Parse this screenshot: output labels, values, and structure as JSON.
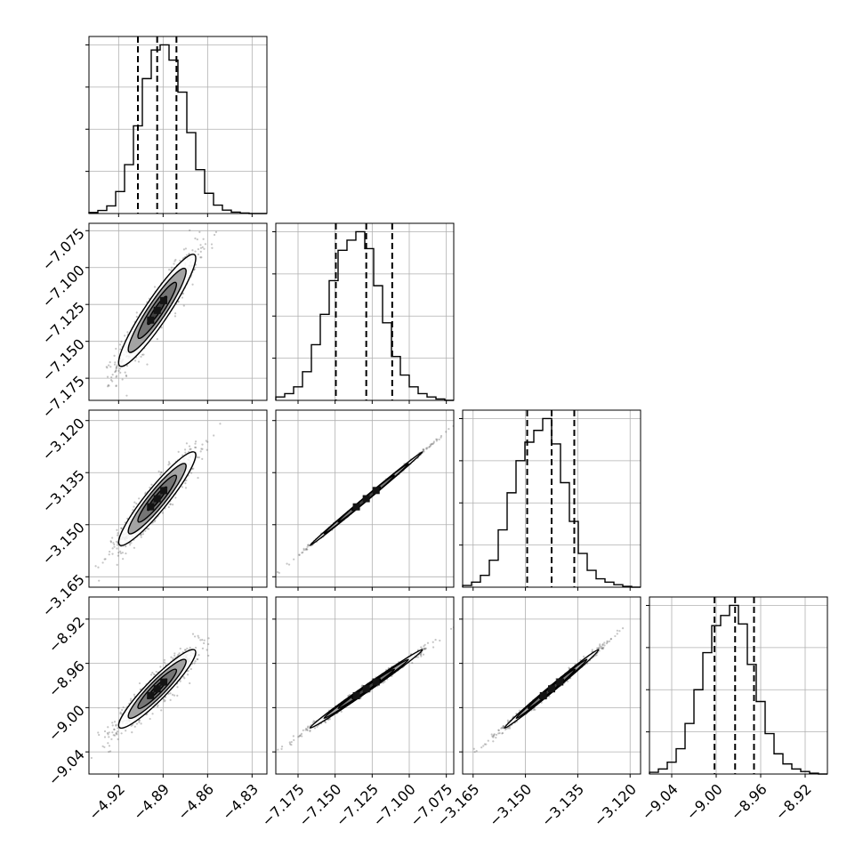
{
  "chart_data": {
    "type": "scatter",
    "title": "",
    "description_of_layout": "",
    "grid": true,
    "parameters": [
      {
        "index": 0,
        "range": [
          -4.94,
          -4.82
        ],
        "ticks": [
          -4.92,
          -4.89,
          -4.86,
          -4.83
        ],
        "tick_labels": [
          "−4.92",
          "−4.89",
          "−4.86",
          "−4.83"
        ],
        "median": -4.894,
        "quantiles": [
          -4.907,
          -4.894,
          -4.881
        ],
        "hist_counts": [
          0.006,
          0.018,
          0.045,
          0.13,
          0.29,
          0.52,
          0.8,
          0.97,
          1.0,
          0.91,
          0.72,
          0.48,
          0.26,
          0.12,
          0.05,
          0.02,
          0.008,
          0.003,
          0.0,
          0.0
        ]
      },
      {
        "index": 1,
        "range": [
          -7.19,
          -7.07
        ],
        "ticks": [
          -7.175,
          -7.15,
          -7.125,
          -7.1,
          -7.075
        ],
        "tick_labels": [
          "−7.175",
          "−7.150",
          "−7.125",
          "−7.100",
          "−7.075"
        ],
        "median": -7.129,
        "quantiles": [
          -7.1495,
          -7.129,
          -7.1115
        ],
        "hist_counts": [
          0.02,
          0.04,
          0.08,
          0.17,
          0.33,
          0.51,
          0.71,
          0.89,
          0.95,
          1.0,
          0.9,
          0.68,
          0.46,
          0.26,
          0.15,
          0.08,
          0.04,
          0.02,
          0.008,
          0.0
        ]
      },
      {
        "index": 2,
        "range": [
          -3.168,
          -3.117
        ],
        "ticks": [
          -3.165,
          -3.15,
          -3.135,
          -3.12
        ],
        "tick_labels": [
          "−3.165",
          "−3.150",
          "−3.135",
          "−3.120"
        ],
        "median": -3.1425,
        "quantiles": [
          -3.1495,
          -3.1425,
          -3.136
        ],
        "hist_counts": [
          0.01,
          0.03,
          0.07,
          0.16,
          0.34,
          0.56,
          0.75,
          0.86,
          0.93,
          1.0,
          0.85,
          0.62,
          0.39,
          0.2,
          0.1,
          0.05,
          0.03,
          0.015,
          0.005,
          0.0
        ]
      },
      {
        "index": 3,
        "range": [
          -9.06,
          -8.9
        ],
        "ticks": [
          -9.04,
          -9.0,
          -8.96,
          -8.92
        ],
        "tick_labels": [
          "−9.04",
          "−9.00",
          "−8.96",
          "−8.92"
        ],
        "median": -8.983,
        "quantiles": [
          -9.0015,
          -8.983,
          -8.966
        ],
        "hist_counts": [
          0.01,
          0.03,
          0.07,
          0.15,
          0.3,
          0.5,
          0.72,
          0.88,
          0.94,
          1.0,
          0.89,
          0.65,
          0.43,
          0.24,
          0.12,
          0.06,
          0.03,
          0.015,
          0.005,
          0.0
        ]
      }
    ],
    "histogram_y_ticks": [
      0.25,
      0.5,
      0.75,
      1.0
    ],
    "correlations": {
      "1_0": 0.93,
      "2_0": 0.93,
      "2_1": 0.999,
      "3_0": 0.93,
      "3_1": 0.995,
      "3_2": 0.995
    },
    "contour_levels_sigma": [
      0.5,
      1.0,
      1.5,
      2.0
    ],
    "colors": {
      "ink": "#000000",
      "grid": "#b0b0b0",
      "density_light": "#9a9a9a",
      "density_dark": "#141414"
    }
  }
}
